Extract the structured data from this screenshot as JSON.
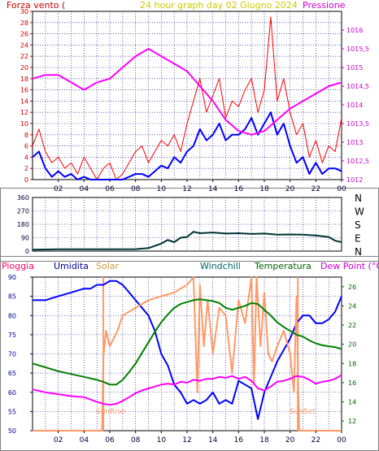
{
  "header": {
    "left_label": "Forza vento (",
    "title": "24 hour graph day   02 Giugno 2024",
    "right_label": "Pressione"
  },
  "x_ticks": [
    "02",
    "04",
    "06",
    "08",
    "10",
    "12",
    "14",
    "16",
    "18",
    "20",
    "22",
    "00"
  ],
  "colors": {
    "background": "#ffffff",
    "wind_gust": "#ff0000",
    "wind_avg": "#0000ff",
    "pressure": "#ff00ff",
    "direction": "#003333",
    "humidity": "#0000ff",
    "solar": "#ff9966",
    "windchill": "#008080",
    "temperature": "#008000",
    "dew_point": "#ff00ff",
    "rain_axis": "#ff0066",
    "grid": "#000080",
    "axis": "#000000"
  },
  "chart_data": [
    {
      "type": "line",
      "x_range": [
        0,
        24
      ],
      "y_left": {
        "label": "Forza vento (",
        "range": [
          0,
          30
        ],
        "ticks": [
          "0",
          "2",
          "4",
          "6",
          "8",
          "10",
          "12",
          "14",
          "16",
          "18",
          "20",
          "22",
          "24",
          "26",
          "28",
          "30"
        ]
      },
      "y_right": {
        "label": "Pressione",
        "range": [
          1012,
          1016.5
        ],
        "ticks": [
          "1012",
          "1012,5",
          "1013",
          "1013,5",
          "1014",
          "1014,5",
          "1015",
          "1015,5",
          "1016"
        ]
      },
      "series": [
        {
          "key": "gust",
          "axis": "left",
          "x": [
            0,
            0.5,
            1,
            1.5,
            2,
            2.5,
            3,
            3.5,
            4,
            4.5,
            5,
            5.5,
            6,
            6.5,
            7,
            7.5,
            8,
            8.5,
            9,
            9.5,
            10,
            10.5,
            11,
            11.5,
            12,
            12.5,
            13,
            13.5,
            14,
            14.5,
            15,
            15.5,
            16,
            16.5,
            17,
            17.5,
            18,
            18.5,
            19,
            19.5,
            20,
            20.5,
            21,
            21.5,
            22,
            22.5,
            23,
            23.5,
            24
          ],
          "y": [
            6,
            9,
            5,
            3,
            4,
            2,
            3,
            1,
            4,
            2,
            0,
            2,
            3,
            0,
            1,
            3,
            5,
            6,
            3,
            5,
            7,
            6,
            8,
            5,
            10,
            14,
            18,
            12,
            15,
            18,
            11,
            14,
            13,
            16,
            18,
            12,
            16,
            29,
            14,
            18,
            12,
            8,
            10,
            4,
            7,
            3,
            6,
            5,
            11
          ]
        },
        {
          "key": "avg",
          "axis": "left",
          "x": [
            0,
            0.5,
            1,
            1.5,
            2,
            2.5,
            3,
            3.5,
            4,
            4.5,
            5,
            5.5,
            6,
            6.5,
            7,
            7.5,
            8,
            8.5,
            9,
            9.5,
            10,
            10.5,
            11,
            11.5,
            12,
            12.5,
            13,
            13.5,
            14,
            14.5,
            15,
            15.5,
            16,
            16.5,
            17,
            17.5,
            18,
            18.5,
            19,
            19.5,
            20,
            20.5,
            21,
            21.5,
            22,
            22.5,
            23,
            23.5,
            24
          ],
          "y": [
            4,
            5,
            2,
            0.5,
            1.5,
            0.5,
            1,
            0,
            0.5,
            0,
            0,
            0,
            0,
            0,
            0,
            0.5,
            1,
            1,
            0.5,
            1.5,
            2.5,
            2,
            4,
            3,
            5,
            6,
            9,
            7,
            8,
            10,
            7,
            8,
            8,
            9,
            11,
            8,
            10,
            12,
            8,
            10,
            6,
            3,
            4,
            1,
            3,
            1,
            2,
            2,
            1.5
          ]
        },
        {
          "key": "pressure",
          "axis": "right",
          "x": [
            0,
            1,
            2,
            3,
            4,
            5,
            6,
            7,
            8,
            9,
            10,
            11,
            12,
            13,
            14,
            15,
            16,
            17,
            18,
            19,
            20,
            21,
            22,
            23,
            24
          ],
          "y": [
            1014.7,
            1014.8,
            1014.8,
            1014.6,
            1014.4,
            1014.6,
            1014.7,
            1015,
            1015.3,
            1015.5,
            1015.3,
            1015.1,
            1014.9,
            1014.5,
            1014.1,
            1013.6,
            1013.3,
            1013.2,
            1013.3,
            1013.6,
            1013.9,
            1014.1,
            1014.3,
            1014.5,
            1014.6
          ]
        }
      ]
    },
    {
      "type": "line",
      "x_range": [
        0,
        24
      ],
      "y_left": {
        "range": [
          0,
          360
        ],
        "ticks": [
          "0",
          "90",
          "180",
          "270",
          "360"
        ]
      },
      "y_right_labels": [
        "N",
        "W",
        "S",
        "E",
        "N"
      ],
      "series": [
        {
          "key": "direction",
          "x": [
            0,
            2,
            4,
            6,
            8,
            9,
            10,
            10.5,
            11,
            11.5,
            12,
            12.5,
            13,
            14,
            15,
            16,
            17,
            18,
            19,
            20,
            21,
            22,
            23,
            23.5,
            24
          ],
          "y": [
            10,
            12,
            12,
            12,
            13,
            20,
            50,
            75,
            60,
            90,
            95,
            130,
            120,
            125,
            118,
            120,
            115,
            118,
            110,
            112,
            110,
            105,
            95,
            70,
            60
          ]
        }
      ]
    },
    {
      "type": "line",
      "x_range": [
        0,
        24
      ],
      "legend": [
        "Pioggia",
        "Umidita",
        "Solar",
        "Windchill",
        "Temperatura",
        "Dew Point (°C)"
      ],
      "y_left": {
        "label": "Pioggia",
        "range": [
          50,
          90
        ],
        "ticks": [
          "50",
          "55",
          "60",
          "65",
          "70",
          "75",
          "80",
          "85",
          "90"
        ]
      },
      "y_right": {
        "label": "Dew Point (°C)",
        "range": [
          11,
          27
        ],
        "ticks": [
          "12",
          "14",
          "16",
          "18",
          "20",
          "22",
          "24",
          "26"
        ]
      },
      "annotations": [
        "SunRise",
        "SunSet"
      ],
      "series": [
        {
          "key": "humidity",
          "axis": "left",
          "x": [
            0,
            1,
            2,
            3,
            4,
            4.5,
            5,
            5.5,
            6,
            6.5,
            7,
            7.5,
            8,
            8.5,
            9,
            9.5,
            10,
            10.5,
            11,
            11.5,
            12,
            12.5,
            13,
            13.5,
            14,
            14.5,
            15,
            15.5,
            16,
            16.5,
            17,
            17.5,
            18,
            18.5,
            19,
            19.5,
            20,
            20.5,
            21,
            21.5,
            22,
            22.5,
            23,
            23.5,
            24
          ],
          "y": [
            84,
            84,
            85,
            86,
            87,
            87,
            88,
            88,
            89,
            89,
            88,
            86,
            84,
            82,
            80,
            76,
            70,
            67,
            62,
            60,
            57,
            58,
            57,
            58,
            60,
            57,
            58,
            57,
            63,
            62,
            61,
            53,
            60,
            64,
            68,
            71,
            74,
            78,
            80,
            80,
            78,
            78,
            79,
            81,
            85
          ]
        },
        {
          "key": "solar",
          "axis": "left",
          "x": [
            0,
            1,
            2,
            3,
            4,
            5,
            5.4,
            5.5,
            5.7,
            6,
            6.3,
            6.6,
            7,
            8,
            9,
            10,
            11,
            12,
            12.5,
            12.8,
            13,
            13.3,
            13.6,
            14,
            14.5,
            15,
            15.5,
            16,
            16.5,
            17,
            17.2,
            17.4,
            17.7,
            18,
            18.3,
            18.6,
            19,
            19.5,
            20,
            20.3,
            20.5,
            20.7,
            21,
            22,
            23,
            24
          ],
          "y": [
            50,
            50,
            50,
            50,
            50,
            50,
            50,
            69,
            76,
            72,
            74,
            76,
            80,
            82,
            84,
            85,
            86,
            88,
            90,
            60,
            88,
            72,
            84,
            70,
            82,
            80,
            65,
            84,
            78,
            90,
            62,
            90,
            72,
            86,
            70,
            68,
            72,
            76,
            70,
            60,
            85,
            50,
            50,
            50,
            50,
            50
          ]
        },
        {
          "key": "temperature",
          "axis": "right",
          "x": [
            0,
            1,
            2,
            3,
            4,
            5,
            5.5,
            6,
            6.5,
            7,
            7.5,
            8,
            8.5,
            9,
            9.5,
            10,
            10.5,
            11,
            11.5,
            12,
            12.5,
            13,
            13.5,
            14,
            14.5,
            15,
            15.5,
            16,
            16.5,
            17,
            17.5,
            18,
            18.5,
            19,
            19.5,
            20,
            20.5,
            21,
            21.5,
            22,
            22.5,
            23,
            23.5,
            24
          ],
          "y": [
            18,
            17.6,
            17.2,
            16.9,
            16.6,
            16.3,
            16.1,
            15.8,
            15.8,
            16.3,
            17.1,
            18,
            19.1,
            20.2,
            21.3,
            22.3,
            23.1,
            23.8,
            24.2,
            24.4,
            24.6,
            24.7,
            24.6,
            24.5,
            24.3,
            23.8,
            23.6,
            23.8,
            24,
            24.3,
            24.2,
            23.6,
            23,
            22.3,
            21.8,
            21.4,
            21,
            20.8,
            20.4,
            20.1,
            19.9,
            19.8,
            19.7,
            19.5
          ]
        },
        {
          "key": "dew_point",
          "axis": "right",
          "x": [
            0,
            1,
            2,
            3,
            4,
            5,
            5.5,
            6,
            6.5,
            7,
            7.5,
            8,
            8.5,
            9,
            9.5,
            10,
            10.5,
            11,
            11.5,
            12,
            12.5,
            13,
            13.5,
            14,
            14.5,
            15,
            15.5,
            16,
            16.5,
            17,
            17.5,
            18,
            18.5,
            19,
            19.5,
            20,
            20.5,
            21,
            21.5,
            22,
            22.5,
            23,
            23.5,
            24
          ],
          "y": [
            15.3,
            15,
            14.8,
            14.6,
            14.5,
            14,
            13.8,
            13.7,
            13.8,
            14.1,
            14.5,
            14.9,
            15.2,
            15.4,
            15.6,
            15.8,
            15.9,
            15.8,
            16.1,
            16,
            16.3,
            16.2,
            16.4,
            16.4,
            16.6,
            16.5,
            16.7,
            16.4,
            16.6,
            16.2,
            15.4,
            15.2,
            15.6,
            16.1,
            16.2,
            16.4,
            16.7,
            16.6,
            16.3,
            15.9,
            16.1,
            16.2,
            16.4,
            16.8
          ]
        }
      ]
    }
  ]
}
